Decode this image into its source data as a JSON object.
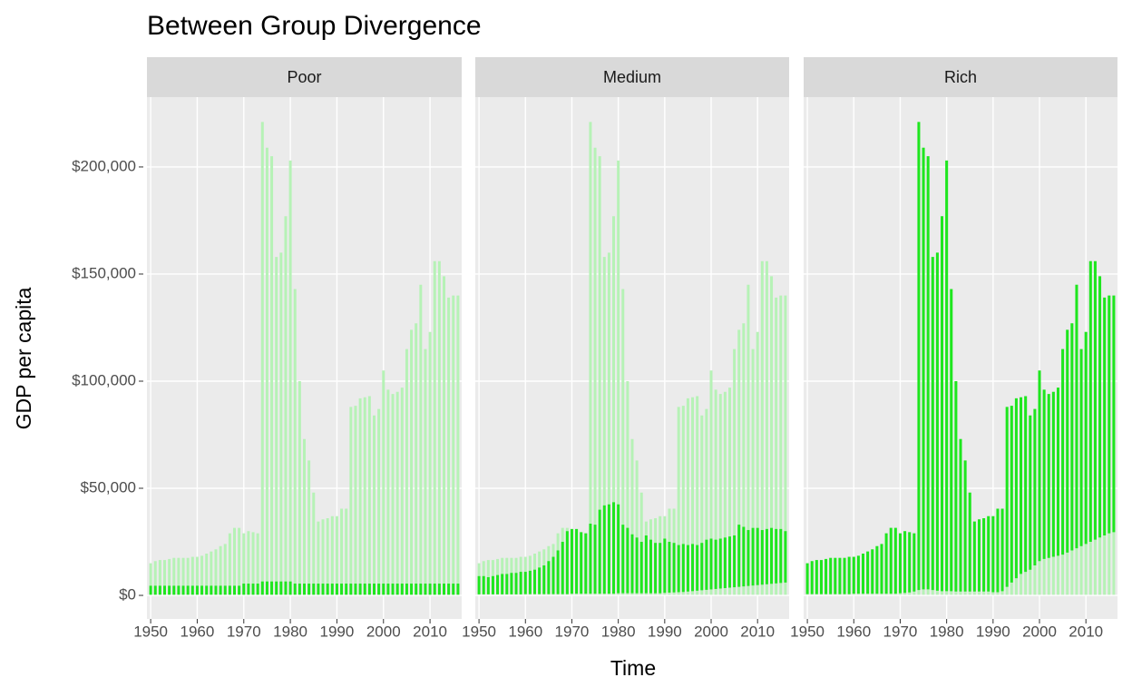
{
  "chart_data": {
    "type": "linerange",
    "title": "Between Group Divergence",
    "xlabel": "Time",
    "ylabel": "GDP per capita",
    "x": [
      1950,
      1951,
      1952,
      1953,
      1954,
      1955,
      1956,
      1957,
      1958,
      1959,
      1960,
      1961,
      1962,
      1963,
      1964,
      1965,
      1966,
      1967,
      1968,
      1969,
      1970,
      1971,
      1972,
      1973,
      1974,
      1975,
      1976,
      1977,
      1978,
      1979,
      1980,
      1981,
      1982,
      1983,
      1984,
      1985,
      1986,
      1987,
      1988,
      1989,
      1990,
      1991,
      1992,
      1993,
      1994,
      1995,
      1996,
      1997,
      1998,
      1999,
      2000,
      2001,
      2002,
      2003,
      2004,
      2005,
      2006,
      2007,
      2008,
      2009,
      2010,
      2011,
      2012,
      2013,
      2014,
      2015,
      2016
    ],
    "xlim": [
      1949.2,
      2016.8
    ],
    "xticks": [
      1950,
      1960,
      1970,
      1980,
      1990,
      2000,
      2010
    ],
    "ylim": [
      -11000,
      232600
    ],
    "yticks": [
      {
        "value": 0,
        "label": "$0"
      },
      {
        "value": 50000,
        "label": "$50,000"
      },
      {
        "value": 100000,
        "label": "$100,000"
      },
      {
        "value": 150000,
        "label": "$150,000"
      },
      {
        "value": 200000,
        "label": "$200,000"
      }
    ],
    "grid": true,
    "overall": {
      "color": "#b6f2b6",
      "low": [
        300,
        300,
        300,
        300,
        300,
        300,
        300,
        300,
        300,
        300,
        300,
        300,
        300,
        300,
        300,
        300,
        300,
        300,
        300,
        300,
        300,
        300,
        300,
        300,
        300,
        300,
        300,
        300,
        300,
        300,
        300,
        300,
        300,
        300,
        300,
        300,
        300,
        300,
        300,
        300,
        300,
        300,
        300,
        300,
        300,
        300,
        300,
        300,
        300,
        300,
        300,
        300,
        300,
        300,
        300,
        300,
        300,
        300,
        300,
        300,
        300,
        300,
        300,
        300,
        300,
        300,
        300
      ],
      "high": [
        15000,
        16000,
        16500,
        16500,
        17000,
        17500,
        17500,
        17500,
        17500,
        18000,
        18000,
        18500,
        19500,
        20500,
        21500,
        23000,
        24000,
        29000,
        31500,
        31500,
        29000,
        30000,
        29500,
        29000,
        221000,
        209000,
        205000,
        158000,
        160000,
        177000,
        203000,
        143000,
        100000,
        73000,
        63000,
        48000,
        34500,
        35500,
        36000,
        37000,
        37000,
        40500,
        40500,
        88000,
        88500,
        92000,
        92500,
        93000,
        84000,
        87000,
        105000,
        96000,
        94000,
        95000,
        97000,
        115000,
        124000,
        127000,
        145000,
        115000,
        123000,
        156000,
        156000,
        149000,
        139000,
        140000,
        140000
      ]
    },
    "group_color": "#1ee61e",
    "panels": [
      {
        "title": "Poor",
        "low": [
          300,
          300,
          300,
          300,
          300,
          300,
          300,
          300,
          300,
          300,
          300,
          300,
          300,
          300,
          300,
          300,
          300,
          300,
          300,
          300,
          300,
          300,
          300,
          300,
          300,
          300,
          300,
          300,
          300,
          300,
          300,
          300,
          300,
          300,
          300,
          300,
          300,
          300,
          300,
          300,
          300,
          300,
          300,
          300,
          300,
          300,
          300,
          300,
          300,
          300,
          300,
          300,
          300,
          300,
          300,
          300,
          300,
          300,
          300,
          300,
          300,
          300,
          300,
          300,
          300,
          300,
          300
        ],
        "high": [
          4500,
          4500,
          4500,
          4500,
          4500,
          4500,
          4500,
          4500,
          4500,
          4500,
          4500,
          4500,
          4500,
          4500,
          4500,
          4500,
          4500,
          4500,
          4500,
          4500,
          5500,
          5500,
          5500,
          5500,
          6500,
          6500,
          6500,
          6500,
          6500,
          6500,
          6500,
          5500,
          5500,
          5500,
          5500,
          5500,
          5500,
          5500,
          5500,
          5500,
          5500,
          5500,
          5500,
          5500,
          5500,
          5500,
          5500,
          5500,
          5500,
          5500,
          5500,
          5500,
          5500,
          5500,
          5500,
          5500,
          5500,
          5500,
          5500,
          5500,
          5500,
          5500,
          5500,
          5500,
          5500,
          5500,
          5500
        ]
      },
      {
        "title": "Medium",
        "low": [
          500,
          500,
          500,
          500,
          500,
          500,
          500,
          500,
          500,
          500,
          600,
          600,
          600,
          600,
          600,
          600,
          600,
          600,
          600,
          600,
          800,
          800,
          800,
          800,
          800,
          800,
          800,
          800,
          800,
          800,
          1000,
          1000,
          1000,
          1000,
          1000,
          1000,
          1000,
          1000,
          1000,
          1000,
          1200,
          1300,
          1400,
          1500,
          1600,
          1800,
          2000,
          2200,
          2400,
          2600,
          2800,
          3000,
          3200,
          3400,
          3600,
          3800,
          4000,
          4200,
          4400,
          4600,
          4800,
          5000,
          5200,
          5400,
          5600,
          5800,
          6000
        ],
        "high": [
          9000,
          9000,
          8500,
          9000,
          9500,
          10000,
          10000,
          10500,
          10500,
          11000,
          11000,
          11500,
          12000,
          13000,
          14000,
          16000,
          18000,
          21000,
          25000,
          30000,
          31000,
          31000,
          29500,
          29000,
          33500,
          33000,
          40000,
          42000,
          42500,
          43500,
          42500,
          33000,
          31500,
          28500,
          27000,
          25000,
          28000,
          26000,
          24500,
          24500,
          26500,
          25000,
          24500,
          23500,
          24000,
          23500,
          24000,
          23500,
          24500,
          26000,
          26500,
          26000,
          26500,
          27000,
          27500,
          28000,
          33000,
          32000,
          30500,
          31500,
          31500,
          30500,
          31000,
          31500,
          31000,
          31000,
          30000
        ]
      },
      {
        "title": "Rich",
        "low": [
          600,
          600,
          600,
          600,
          600,
          600,
          600,
          600,
          600,
          600,
          800,
          800,
          800,
          800,
          800,
          800,
          800,
          800,
          800,
          800,
          1000,
          1200,
          1400,
          1800,
          2500,
          2800,
          2800,
          2500,
          2200,
          2000,
          2000,
          2000,
          1800,
          1800,
          1800,
          1800,
          1800,
          1800,
          1800,
          1800,
          1500,
          1500,
          2000,
          4000,
          6000,
          8000,
          10000,
          11000,
          12000,
          14000,
          16000,
          17000,
          17500,
          18000,
          18500,
          19000,
          20000,
          21000,
          22000,
          23000,
          24000,
          25000,
          26000,
          27000,
          28000,
          29000,
          29500
        ],
        "high": [
          15000,
          16000,
          16500,
          16500,
          17000,
          17500,
          17500,
          17500,
          17500,
          18000,
          18000,
          18500,
          19500,
          20500,
          21500,
          23000,
          24000,
          29000,
          31500,
          31500,
          29000,
          30000,
          29500,
          29000,
          221000,
          209000,
          205000,
          158000,
          160000,
          177000,
          203000,
          143000,
          100000,
          73000,
          63000,
          48000,
          34500,
          35500,
          36000,
          37000,
          37000,
          40500,
          40500,
          88000,
          88500,
          92000,
          92500,
          93000,
          84000,
          87000,
          105000,
          96000,
          94000,
          95000,
          97000,
          115000,
          124000,
          127000,
          145000,
          115000,
          123000,
          156000,
          156000,
          149000,
          139000,
          140000,
          140000
        ]
      }
    ]
  }
}
